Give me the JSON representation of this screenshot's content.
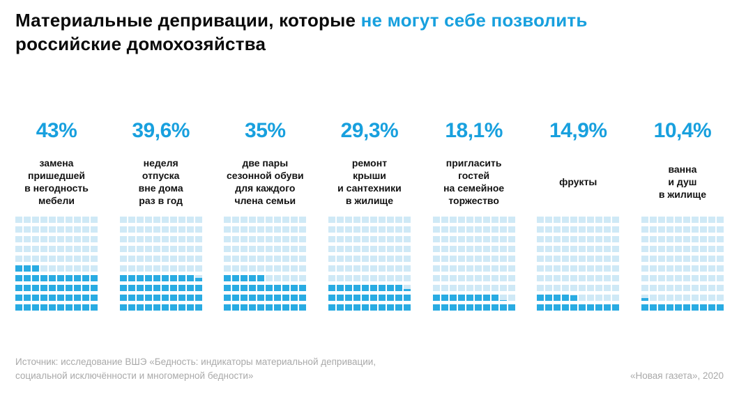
{
  "title": {
    "part1": "Материальные депривации, которые ",
    "accent": "не могут себе позволить",
    "part2": "российские домохозяйства"
  },
  "chart_data": {
    "type": "waffle",
    "title": "Материальные депривации, которые не могут себе позволить российские домохозяйства",
    "unit": "% домохозяйств",
    "grid": {
      "columns": 10,
      "rows": 10,
      "cell_value_percent": 1,
      "fill_direction": "bottom-left, row by row"
    },
    "categories": [
      "замена пришедшей в негодность мебели",
      "неделя отпуска вне дома раз в год",
      "две пары сезонной обуви для каждого члена семьи",
      "ремонт крыши и сантехники в жилище",
      "пригласить гостей на семейное торжество",
      "фрукты",
      "ванна и душ в жилище"
    ],
    "values": [
      43,
      39.6,
      35,
      29.3,
      18.1,
      14.9,
      10.4
    ],
    "items": [
      {
        "value": 43,
        "value_label": "43%",
        "label": "замена\nпришедшей\nв негодность\nмебели"
      },
      {
        "value": 39.6,
        "value_label": "39,6%",
        "label": "неделя\nотпуска\nвне дома\nраз в год"
      },
      {
        "value": 35,
        "value_label": "35%",
        "label": "две пары\nсезонной обуви\nдля каждого\nчлена семьи"
      },
      {
        "value": 29.3,
        "value_label": "29,3%",
        "label": "ремонт\nкрыши\nи сантехники\nв жилище"
      },
      {
        "value": 18.1,
        "value_label": "18,1%",
        "label": "пригласить\nгостей\nна семейное\nторжество"
      },
      {
        "value": 14.9,
        "value_label": "14,9%",
        "label": "фрукты"
      },
      {
        "value": 10.4,
        "value_label": "10,4%",
        "label": "ванна\nи душ\nв жилище"
      }
    ],
    "colors": {
      "accent_text": "#18a0de",
      "filled": "#29abe2",
      "empty": "#cfe9f6"
    },
    "legend": "off",
    "grid_lines": "off"
  },
  "footer": {
    "source": "Источник: исследование ВШЭ «Бедность: индикаторы материальной депривации,\nсоциальной исключённости и многомерной бедности»",
    "credit": "«Новая газета», 2020"
  }
}
